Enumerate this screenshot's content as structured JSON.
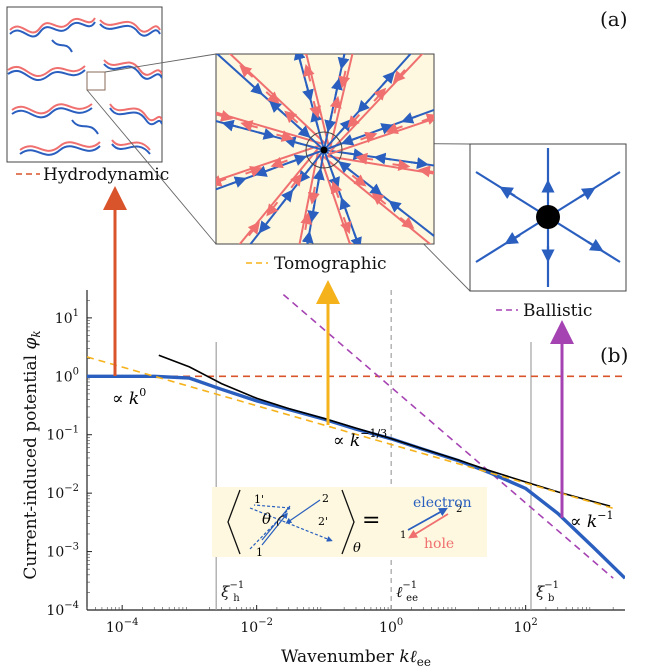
{
  "panel_a_label": "(a)",
  "panel_b_label": "(b)",
  "colors": {
    "electron": "#2a5fbf",
    "hole": "#f06f6f",
    "hydro": "#d9542a",
    "tomo": "#f5b21a",
    "ball": "#a643b3",
    "panel_bg": "#fdf8df",
    "gray": "#999999"
  },
  "panels": {
    "hydro_label": "Hydrodynamic",
    "tomo_label": "Tomographic",
    "ball_label": "Ballistic"
  },
  "chart_data": {
    "type": "line",
    "title": "",
    "xlabel": "Wavenumber k ℓ_ee",
    "ylabel": "Current-induced potential φ_k",
    "xscale": "log",
    "yscale": "log",
    "xlim": [
      3e-05,
      3000
    ],
    "ylim": [
      0.0001,
      30
    ],
    "x_ticks": [
      0.0001,
      0.01,
      1,
      100
    ],
    "x_tick_labels": [
      "10^-4",
      "10^-2",
      "10^0",
      "10^2"
    ],
    "y_ticks": [
      0.0001,
      0.001,
      0.01,
      0.1,
      1,
      10
    ],
    "y_tick_labels": [
      "10^-4",
      "10^-3",
      "10^-2",
      "10^-1",
      "10^0",
      "10^1"
    ],
    "vertical_markers": [
      {
        "x": 0.0025,
        "label": "ξ_h^-1",
        "style": "solid"
      },
      {
        "x": 1,
        "label": "ℓ_ee^-1",
        "style": "dashed"
      },
      {
        "x": 120,
        "label": "ξ_b^-1",
        "style": "solid"
      }
    ],
    "annotations": [
      "∝ k^0",
      "∝ k^-1/3",
      "∝ k^-1"
    ],
    "inset": {
      "subscript": "θ",
      "angle_label": "θ",
      "equals": "=",
      "left_labels": [
        "1'",
        "2",
        "θ",
        "1",
        "2'"
      ],
      "electron_label": "electron",
      "hole_label": "hole",
      "right_labels": [
        "1",
        "2"
      ]
    },
    "series": [
      {
        "role": "full",
        "x": [
          3e-05,
          0.0003,
          0.001,
          0.003,
          0.01,
          0.03,
          0.1,
          0.3,
          1,
          3,
          10,
          30,
          100,
          300,
          1000,
          3000
        ],
        "y": [
          1.0,
          1.0,
          0.93,
          0.6,
          0.38,
          0.27,
          0.185,
          0.125,
          0.085,
          0.056,
          0.036,
          0.022,
          0.012,
          0.0045,
          0.0012,
          0.00035
        ]
      },
      {
        "role": "black",
        "x": [
          0.00035,
          0.001,
          0.003,
          0.01,
          0.03,
          0.1,
          0.3,
          1,
          3,
          10,
          30,
          100,
          300,
          1000,
          1800
        ],
        "y": [
          2.3,
          1.45,
          0.75,
          0.42,
          0.28,
          0.19,
          0.13,
          0.086,
          0.057,
          0.037,
          0.024,
          0.0155,
          0.0105,
          0.0072,
          0.006
        ]
      },
      {
        "role": "hydrodynamic",
        "x": [
          3e-05,
          3000
        ],
        "y": [
          1.0,
          1.0
        ]
      },
      {
        "role": "tomographic",
        "x": [
          3e-05,
          2000
        ],
        "y": [
          2.15,
          0.0055
        ]
      },
      {
        "role": "ballistic",
        "x": [
          0.025,
          2000
        ],
        "y": [
          25,
          0.00035
        ]
      }
    ]
  }
}
